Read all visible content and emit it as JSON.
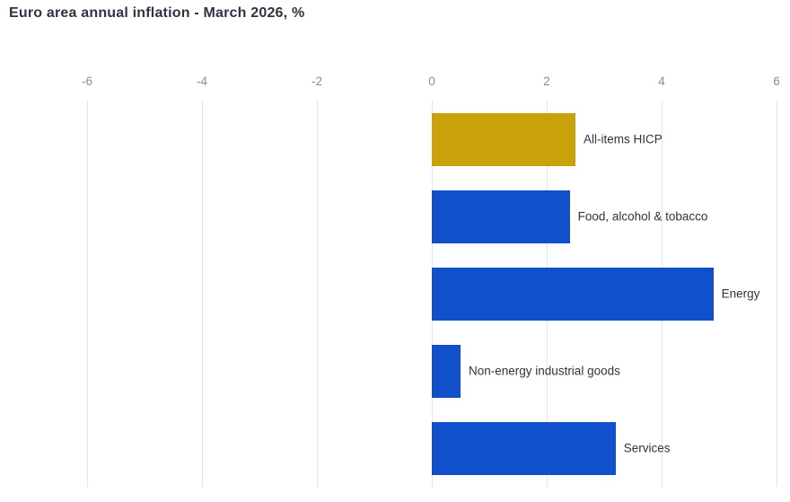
{
  "chart_data": {
    "type": "bar",
    "orientation": "horizontal",
    "title": "Euro area annual inflation - March 2026, %",
    "categories": [
      "All-items HICP",
      "Food, alcohol & tobacco",
      "Energy",
      "Non-energy industrial goods",
      "Services"
    ],
    "values": [
      2.5,
      2.4,
      4.9,
      0.5,
      3.2
    ],
    "xlabel": "",
    "ylabel": "",
    "xlim": [
      -6,
      6
    ],
    "xticks": [
      -6,
      -4,
      -2,
      0,
      2,
      4,
      6
    ],
    "grid": true,
    "legend": "none",
    "bar_colors": [
      "#c9a108",
      "#1150cb",
      "#1150cb",
      "#1150cb",
      "#1150cb"
    ]
  },
  "colors": {
    "highlight_bar": "#c9a108",
    "default_bar": "#1150cb",
    "gridline": "#dfe4ee",
    "tick_label": "#878d98",
    "category_label": "#2f333b",
    "title": "#2e3441",
    "background": "#ffffff"
  }
}
